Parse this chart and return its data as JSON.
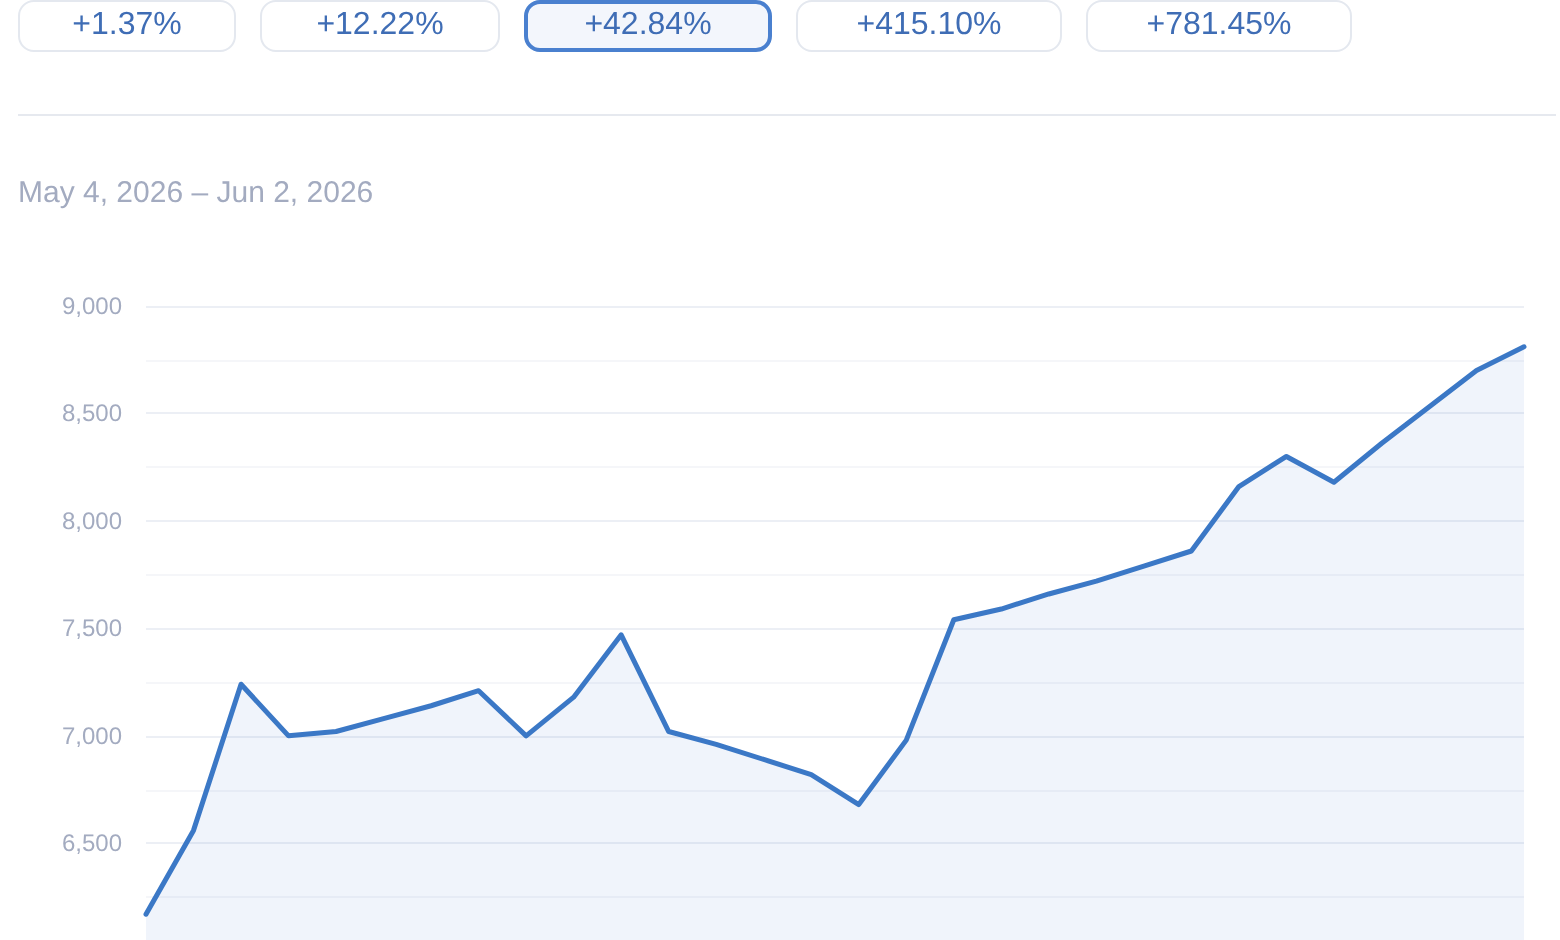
{
  "chart_data": {
    "type": "area",
    "subtitle": "May 4, 2026 – Jun 2, 2026",
    "annotations": [
      "+1.37%",
      "+12.22%",
      "+42.84%",
      "+415.10%",
      "+781.45%"
    ],
    "categories": [
      null,
      null,
      null,
      null,
      null,
      null,
      null,
      null,
      null,
      null,
      null,
      null,
      null,
      null,
      null,
      null,
      null,
      null,
      null,
      null,
      null,
      null,
      null,
      null,
      null,
      null,
      null,
      null,
      null,
      null
    ],
    "values": [
      6170,
      6560,
      7240,
      7000,
      7020,
      7080,
      7140,
      7210,
      7000,
      7180,
      7470,
      7020,
      6960,
      6890,
      6820,
      6680,
      6980,
      7540,
      7590,
      7660,
      7720,
      7790,
      7860,
      8160,
      8300,
      8180,
      8360,
      8530,
      8700,
      8810
    ],
    "color": "#3b78c6",
    "ylim": [
      6050,
      9000
    ],
    "yticks": [
      {
        "value": 6250,
        "label": null
      },
      {
        "value": 6500,
        "label": "6,500"
      },
      {
        "value": 6750,
        "label": null
      },
      {
        "value": 7000,
        "label": "7,000"
      },
      {
        "value": 7250,
        "label": null
      },
      {
        "value": 7500,
        "label": "7,500"
      },
      {
        "value": 7750,
        "label": null
      },
      {
        "value": 8000,
        "label": "8,000"
      },
      {
        "value": 8250,
        "label": null
      },
      {
        "value": 8500,
        "label": "8,500"
      },
      {
        "value": 8750,
        "label": null
      },
      {
        "value": 9000,
        "label": "9,000"
      }
    ],
    "grid": "y",
    "tick_labels": "y"
  }
}
